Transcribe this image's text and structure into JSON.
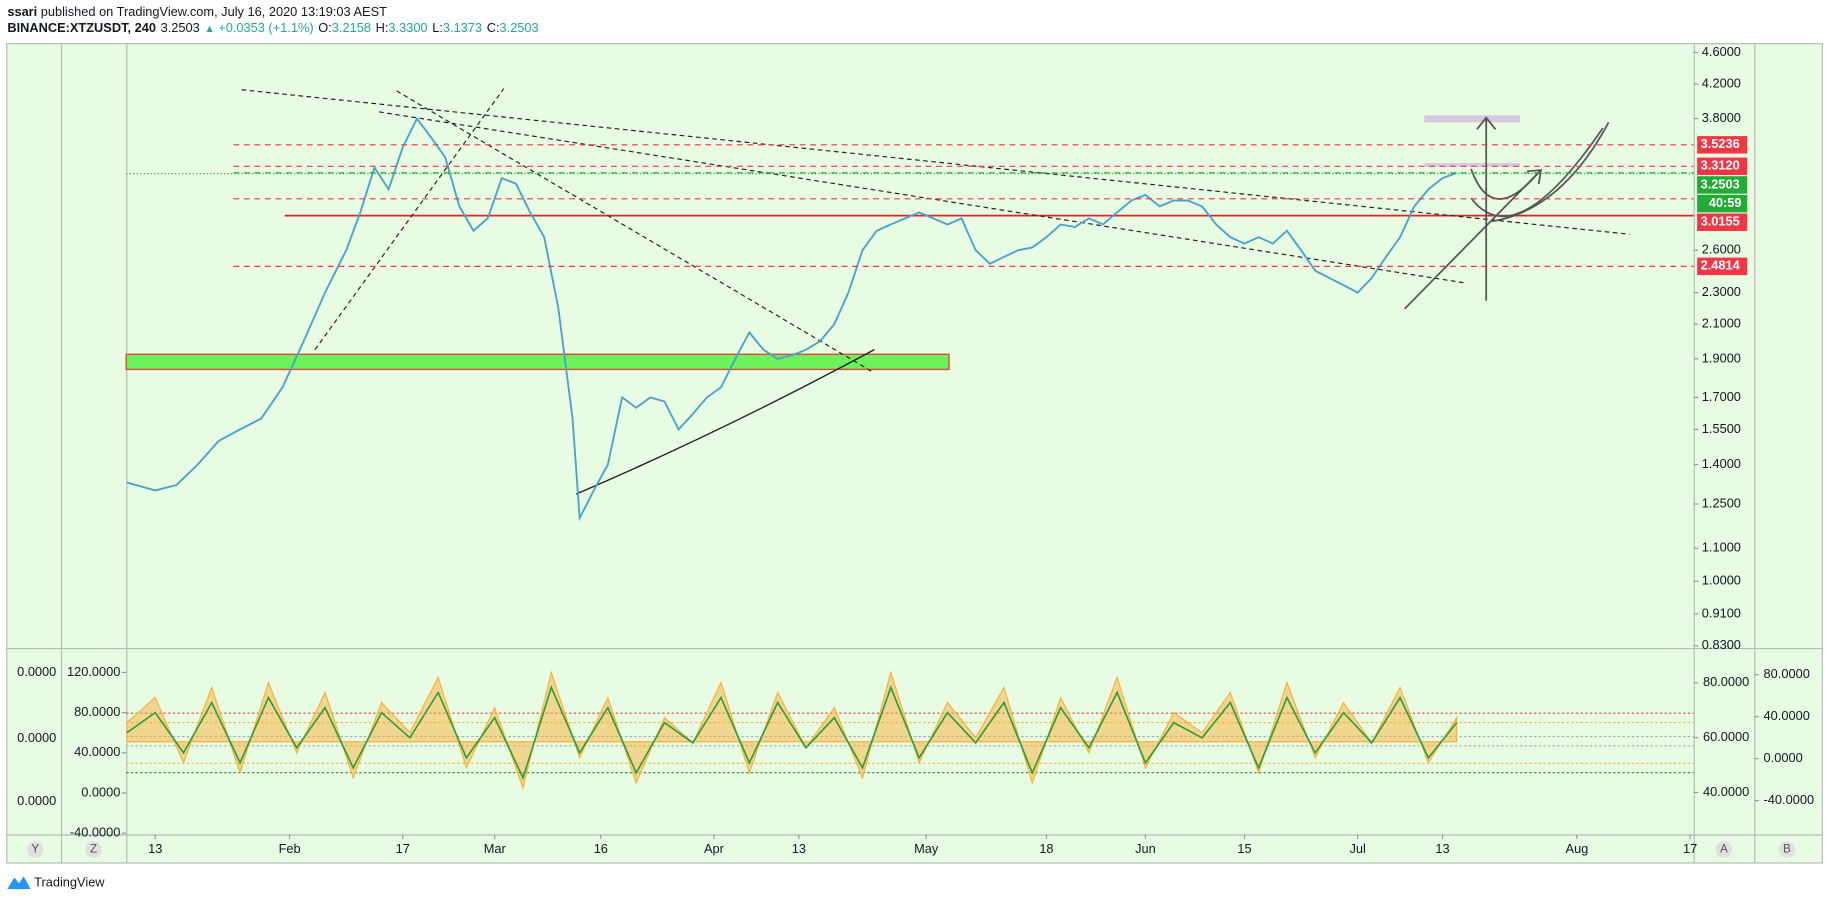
{
  "header": {
    "author": "ssari",
    "published": "published on TradingView.com, July 16, 2020 13:19:03 AEST",
    "symbol": "BINANCE:XTZUSDT, 240",
    "last": "3.2503",
    "direction": "▲",
    "change": "+0.0353 (+1.1%)",
    "ohlc": [
      {
        "label": "O:",
        "value": "3.2158"
      },
      {
        "label": "H:",
        "value": "3.3300"
      },
      {
        "label": "L:",
        "value": "3.1373"
      },
      {
        "label": "C:",
        "value": "3.2503"
      }
    ]
  },
  "chart_data": [
    {
      "type": "line",
      "log_scale": true,
      "grid": false,
      "color": "#4aa3c9",
      "x": [
        9,
        13,
        16,
        19,
        22,
        25,
        28,
        31,
        34,
        37,
        40,
        42,
        44,
        46,
        48,
        50,
        52,
        54,
        56,
        58,
        60,
        62,
        64,
        66,
        68,
        70,
        72,
        73,
        75,
        77,
        79,
        81,
        83,
        85,
        87,
        89,
        91,
        93,
        95,
        97,
        99,
        101,
        103,
        105,
        107,
        109,
        111,
        113,
        115,
        117,
        119,
        121,
        123,
        125,
        127,
        129,
        131,
        133,
        135,
        137,
        139,
        141,
        143,
        145,
        147,
        149,
        151,
        153,
        155,
        157,
        159,
        161,
        163,
        165,
        167,
        169,
        171,
        173,
        175,
        177,
        179,
        181,
        183,
        185,
        187,
        189,
        191,
        193,
        195,
        197
      ],
      "values": [
        1.33,
        1.3,
        1.32,
        1.4,
        1.5,
        1.55,
        1.6,
        1.75,
        2.0,
        2.3,
        2.6,
        2.9,
        3.3,
        3.1,
        3.5,
        3.8,
        3.6,
        3.4,
        2.95,
        2.75,
        2.85,
        3.2,
        3.15,
        2.9,
        2.7,
        2.2,
        1.6,
        1.2,
        1.3,
        1.4,
        1.7,
        1.65,
        1.7,
        1.68,
        1.55,
        1.62,
        1.7,
        1.75,
        1.9,
        2.05,
        1.95,
        1.9,
        1.92,
        1.95,
        2.0,
        2.1,
        2.3,
        2.6,
        2.75,
        2.8,
        2.85,
        2.9,
        2.85,
        2.8,
        2.85,
        2.6,
        2.5,
        2.55,
        2.6,
        2.62,
        2.7,
        2.8,
        2.78,
        2.85,
        2.8,
        2.9,
        3.0,
        3.05,
        2.95,
        3.0,
        3.0,
        2.95,
        2.8,
        2.7,
        2.65,
        2.7,
        2.65,
        2.75,
        2.6,
        2.45,
        2.4,
        2.35,
        2.3,
        2.4,
        2.55,
        2.7,
        2.95,
        3.1,
        3.2,
        3.2503
      ],
      "xlim": [
        8.9,
        230.5
      ],
      "xticks": [
        {
          "value": 13,
          "label": "13"
        },
        {
          "value": 32,
          "label": "Feb"
        },
        {
          "value": 48,
          "label": "17"
        },
        {
          "value": 61,
          "label": "Mar"
        },
        {
          "value": 76,
          "label": "16"
        },
        {
          "value": 92,
          "label": "Apr"
        },
        {
          "value": 104,
          "label": "13"
        },
        {
          "value": 122,
          "label": "May"
        },
        {
          "value": 139,
          "label": "18"
        },
        {
          "value": 153,
          "label": "Jun"
        },
        {
          "value": 167,
          "label": "15"
        },
        {
          "value": 183,
          "label": "Jul"
        },
        {
          "value": 195,
          "label": "13"
        },
        {
          "value": 214,
          "label": "Aug"
        },
        {
          "value": 230,
          "label": "17"
        }
      ],
      "ylim": [
        0.825,
        4.71
      ],
      "yticks": [
        {
          "value": 4.6,
          "label": "4.6000"
        },
        {
          "value": 4.2,
          "label": "4.2000"
        },
        {
          "value": 3.8,
          "label": "3.8000"
        },
        {
          "value": 2.6,
          "label": "2.6000"
        },
        {
          "value": 2.3,
          "label": "2.3000"
        },
        {
          "value": 2.1,
          "label": "2.1000"
        },
        {
          "value": 1.9,
          "label": "1.9000"
        },
        {
          "value": 1.7,
          "label": "1.7000"
        },
        {
          "value": 1.55,
          "label": "1.5500"
        },
        {
          "value": 1.4,
          "label": "1.4000"
        },
        {
          "value": 1.25,
          "label": "1.2500"
        },
        {
          "value": 1.1,
          "label": "1.1000"
        },
        {
          "value": 1.0,
          "label": "1.0000"
        },
        {
          "value": 0.91,
          "label": "0.9100"
        },
        {
          "value": 0.83,
          "label": "0.8300"
        }
      ],
      "levels": [
        3.5236,
        3.312,
        3.2503,
        3.0155,
        2.4814
      ],
      "level_labels": [
        "3.5236",
        "3.3120",
        "3.2503",
        "3.0155",
        "2.4814"
      ],
      "level_colors": [
        "#f23645",
        "#f23645",
        "#22ab35",
        "#f23645",
        "#f23645"
      ],
      "countdown": "40:59"
    },
    {
      "type": "oscillator",
      "x": [
        9,
        13,
        17,
        21,
        25,
        29,
        33,
        37,
        41,
        45,
        49,
        53,
        57,
        61,
        65,
        69,
        73,
        77,
        81,
        85,
        89,
        93,
        97,
        101,
        105,
        109,
        113,
        117,
        121,
        125,
        129,
        133,
        137,
        141,
        145,
        149,
        153,
        157,
        161,
        165,
        169,
        173,
        177,
        181,
        185,
        189,
        193,
        197
      ],
      "series": [
        {
          "color": "#f7b13b",
          "values": [
            70,
            95,
            30,
            105,
            20,
            110,
            40,
            100,
            15,
            90,
            60,
            115,
            25,
            85,
            5,
            120,
            35,
            95,
            10,
            75,
            50,
            110,
            20,
            100,
            45,
            85,
            15,
            120,
            30,
            90,
            55,
            105,
            10,
            95,
            40,
            115,
            25,
            80,
            60,
            100,
            20,
            110,
            35,
            90,
            50,
            105,
            30,
            75
          ]
        },
        {
          "color": "#2e9e3a",
          "values": [
            60,
            80,
            40,
            90,
            30,
            95,
            45,
            85,
            25,
            80,
            55,
            100,
            35,
            75,
            15,
            105,
            40,
            85,
            20,
            70,
            50,
            95,
            30,
            90,
            45,
            75,
            25,
            105,
            35,
            80,
            50,
            90,
            20,
            85,
            45,
            100,
            30,
            70,
            55,
            90,
            25,
            95,
            40,
            80,
            50,
            95,
            35,
            70
          ]
        }
      ],
      "ylim": [
        -41.2,
        143.2
      ],
      "yticks": [
        {
          "value": 120,
          "label": "120.0000"
        },
        {
          "value": 80,
          "label": "80.0000"
        },
        {
          "value": 40,
          "label": "40.0000"
        },
        {
          "value": 0,
          "label": "0.0000"
        },
        {
          "value": -40,
          "label": "-40.0000"
        }
      ],
      "extra_axes": [
        {
          "side": "right",
          "ylim": [
            24.7,
            92.3
          ],
          "yticks": [
            {
              "value": 80,
              "label": "80.0000"
            },
            {
              "value": 60,
              "label": "60.0000"
            },
            {
              "value": 40,
              "label": "40.0000"
            }
          ]
        },
        {
          "side": "right-outer",
          "ylim": [
            -72.2,
            104.4
          ],
          "yticks": [
            {
              "value": 80,
              "label": "80.0000"
            },
            {
              "value": 40,
              "label": "40.0000"
            },
            {
              "value": 0,
              "label": "0.0000"
            },
            {
              "value": -40,
              "label": "-40.0000"
            }
          ]
        }
      ],
      "left_labels": [
        "0.0000",
        "0.0000",
        "0.0000"
      ]
    }
  ],
  "ui": {
    "buttons": [
      "Y",
      "Z",
      "A",
      "B"
    ],
    "brand": "TradingView"
  }
}
